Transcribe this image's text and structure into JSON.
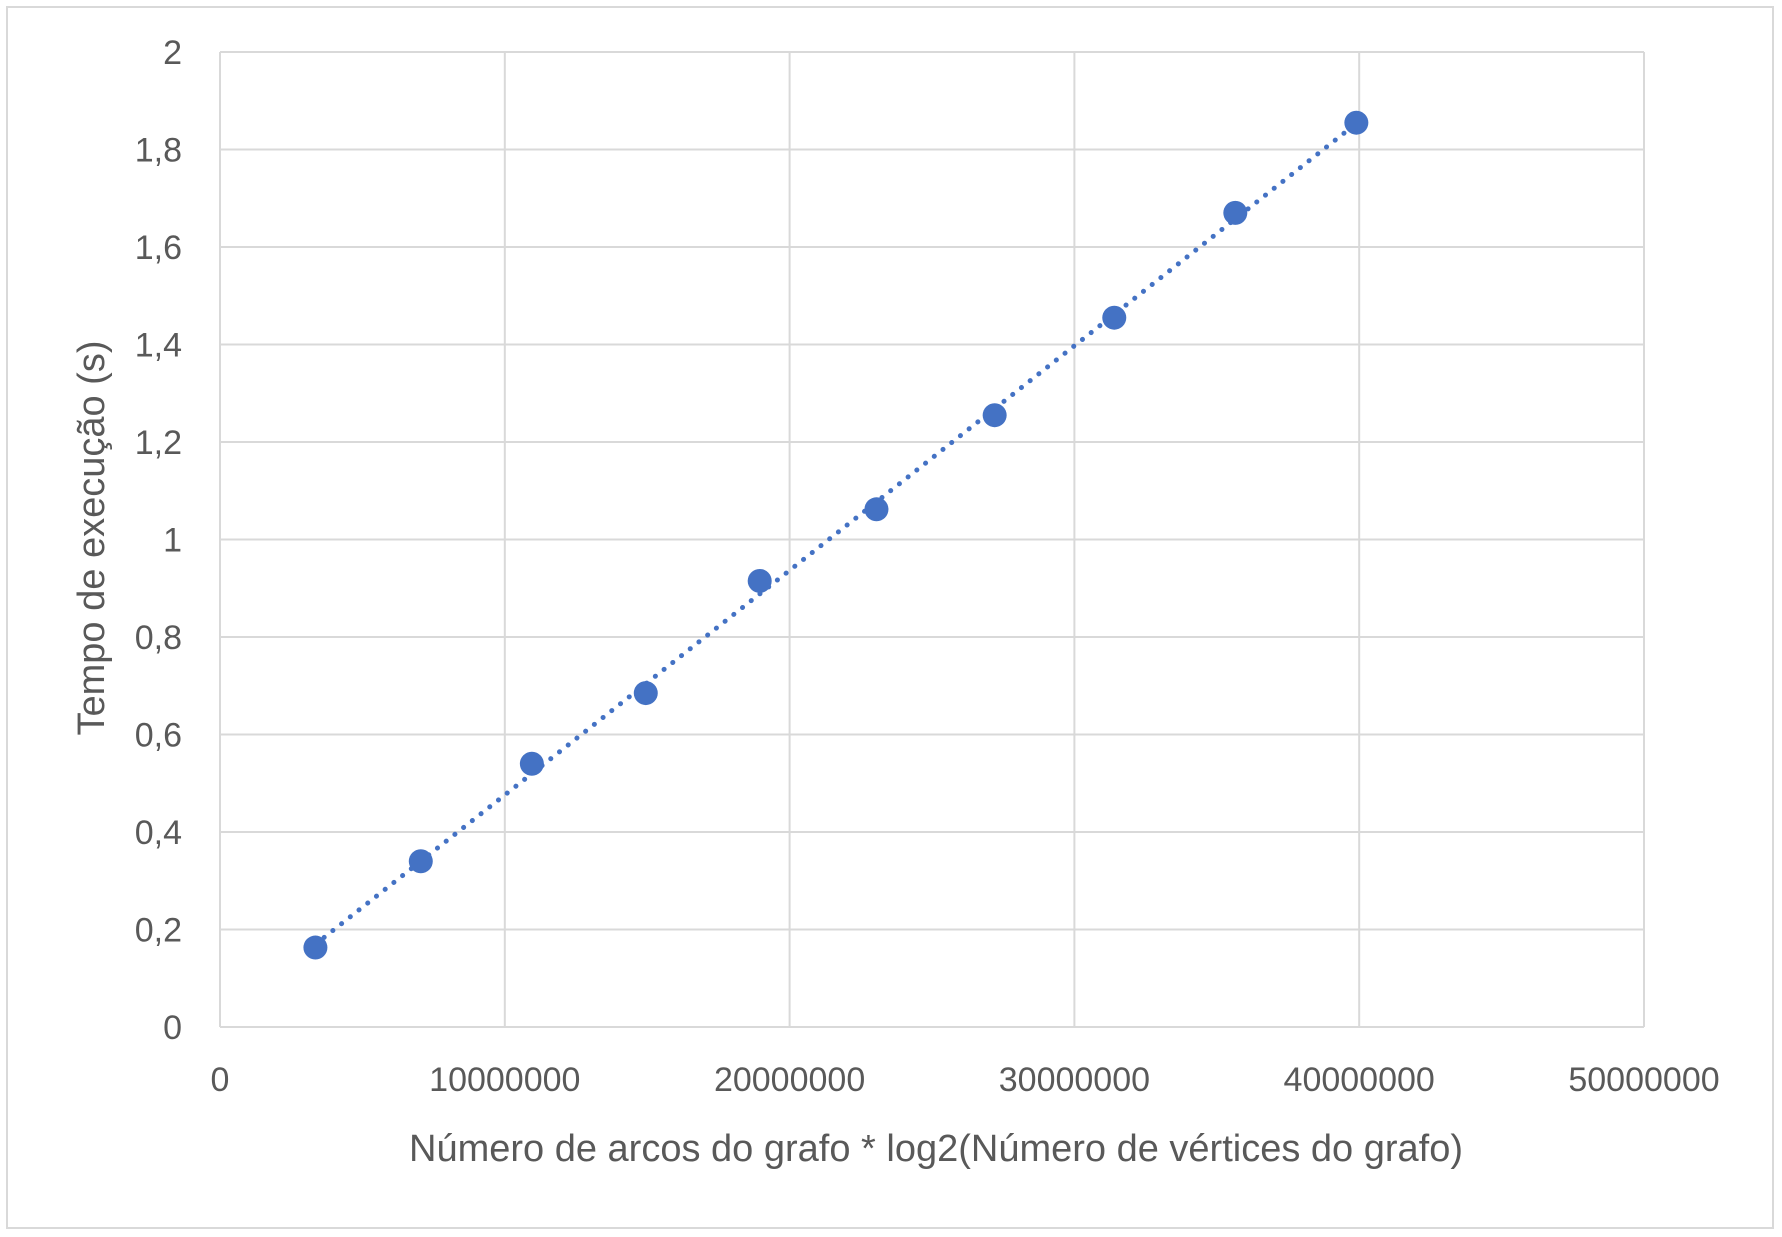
{
  "chart_data": {
    "type": "scatter",
    "title": "",
    "xlabel": "Número de arcos do grafo * log2(Número de vértices do grafo)",
    "ylabel": "Tempo de execução (s)",
    "xlim": [
      0,
      50000000
    ],
    "ylim": [
      0,
      2
    ],
    "x_ticks": [
      0,
      10000000,
      20000000,
      30000000,
      40000000,
      50000000
    ],
    "x_tick_labels": [
      "0",
      "10000000",
      "20000000",
      "30000000",
      "40000000",
      "50000000"
    ],
    "y_ticks": [
      0,
      0.2,
      0.4,
      0.6,
      0.8,
      1,
      1.2,
      1.4,
      1.6,
      1.8,
      2
    ],
    "y_tick_labels": [
      "0",
      "0,2",
      "0,4",
      "0,6",
      "0,8",
      "1",
      "1,2",
      "1,4",
      "1,6",
      "1,8",
      "2"
    ],
    "grid": true,
    "legend": "none",
    "series": [
      {
        "x": [
          3350000,
          7050000,
          10950000,
          14950000,
          18950000,
          23050000,
          27200000,
          31400000,
          35650000,
          39900000
        ],
        "y": [
          0.163,
          0.34,
          0.54,
          0.685,
          0.915,
          1.062,
          1.255,
          1.455,
          1.67,
          1.855
        ],
        "color": "#4472c4",
        "trendline": "linear",
        "trendline_style": "dotted"
      }
    ]
  }
}
